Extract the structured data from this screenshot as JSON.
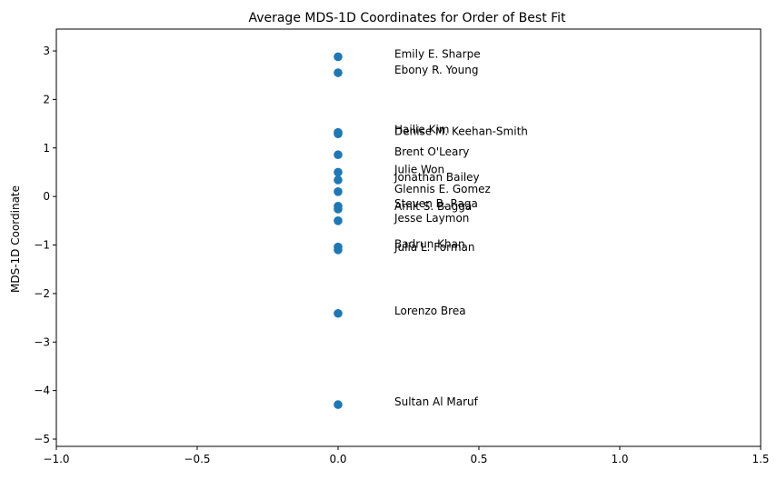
{
  "chart_data": {
    "type": "scatter",
    "title": "Average MDS-1D Coordinates for Order of Best Fit",
    "xlabel": "",
    "ylabel": "MDS-1D Coordinate",
    "xlim": [
      -1.0,
      1.5
    ],
    "ylim": [
      -5.15,
      3.45
    ],
    "xticks": [
      -1.0,
      -0.5,
      0.0,
      0.5,
      1.0,
      1.5
    ],
    "xtick_labels": [
      "−1.0",
      "−0.5",
      "0.0",
      "0.5",
      "1.0",
      "1.5"
    ],
    "yticks": [
      3,
      2,
      1,
      0,
      -1,
      -2,
      -3,
      -4,
      -5
    ],
    "ytick_labels": [
      "3",
      "2",
      "1",
      "0",
      "−1",
      "−2",
      "−3",
      "−4",
      "−5"
    ],
    "grid": false,
    "marker_color": "#1f77b4",
    "points": [
      {
        "label": "Emily E. Sharpe",
        "x": 0.0,
        "y": 2.88
      },
      {
        "label": "Ebony R. Young",
        "x": 0.0,
        "y": 2.55
      },
      {
        "label": "Hailie Kim",
        "x": 0.0,
        "y": 1.32
      },
      {
        "label": "Denise M. Keehan-Smith",
        "x": 0.0,
        "y": 1.29
      },
      {
        "label": "Brent O'Leary",
        "x": 0.0,
        "y": 0.86
      },
      {
        "label": "Julie Won",
        "x": 0.0,
        "y": 0.5
      },
      {
        "label": "Jonathan Bailey",
        "x": 0.0,
        "y": 0.34
      },
      {
        "label": "Glennis E. Gomez",
        "x": 0.0,
        "y": 0.1
      },
      {
        "label": "Steven B. Raga",
        "x": 0.0,
        "y": -0.2
      },
      {
        "label": "Amit S. Bagga",
        "x": 0.0,
        "y": -0.26
      },
      {
        "label": "Jesse Laymon",
        "x": 0.0,
        "y": -0.5
      },
      {
        "label": "Badrun Khan",
        "x": 0.0,
        "y": -1.04
      },
      {
        "label": "Julia L. Forman",
        "x": 0.0,
        "y": -1.1
      },
      {
        "label": "Lorenzo Brea",
        "x": 0.0,
        "y": -2.41
      },
      {
        "label": "Sultan Al Maruf",
        "x": 0.0,
        "y": -4.29
      }
    ]
  }
}
